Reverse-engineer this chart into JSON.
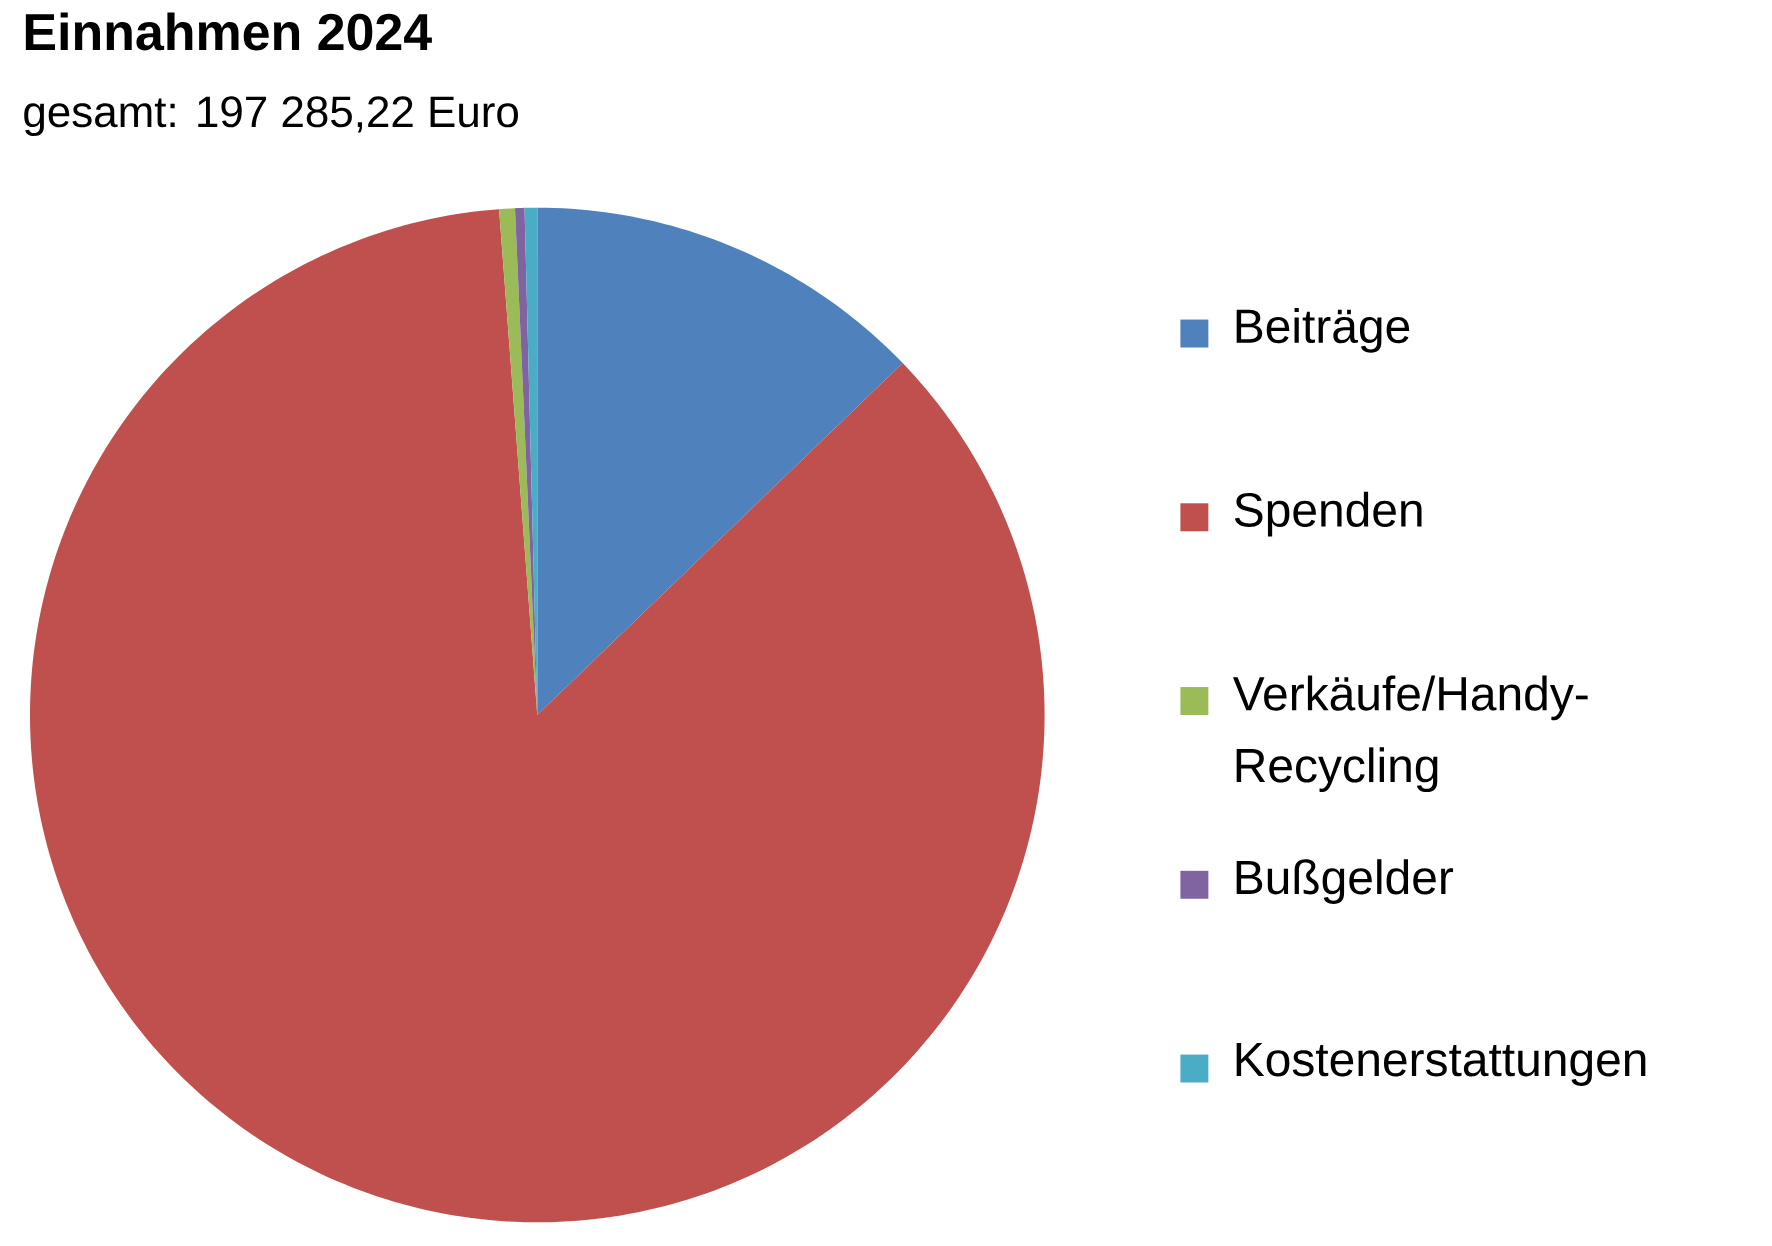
{
  "chart_data": {
    "type": "pie",
    "title": "Einnahmen 2024",
    "subtitle": "gesamt: 197 285,22 Euro",
    "categories": [
      "Beiträge",
      "Spenden",
      "Verkäufe/Handy-Recycling",
      "Bußgelder",
      "Kostenerstattungen"
    ],
    "values": [
      12.8,
      86.0,
      0.5,
      0.3,
      0.4
    ],
    "colors": [
      "#4f81bd",
      "#c0504d",
      "#9bbb59",
      "#8064a2",
      "#4bacc6"
    ],
    "legend": "right"
  }
}
